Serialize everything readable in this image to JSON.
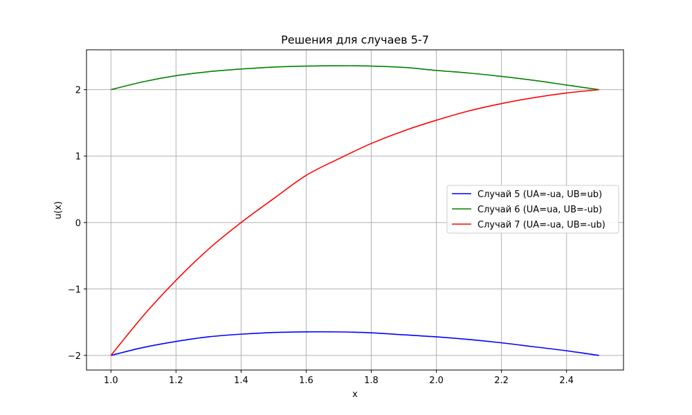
{
  "chart_data": {
    "type": "line",
    "title": "Решения для случаев 5-7",
    "xlabel": "x",
    "ylabel": "u(x)",
    "xlim": [
      0.925,
      2.575
    ],
    "ylim": [
      -2.22,
      2.6
    ],
    "x_ticks": [
      1.0,
      1.2,
      1.4,
      1.6,
      1.8,
      2.0,
      2.2,
      2.4
    ],
    "x_tick_labels": [
      "1.0",
      "1.2",
      "1.4",
      "1.6",
      "1.8",
      "2.0",
      "2.2",
      "2.4"
    ],
    "y_ticks": [
      -2,
      -1,
      0,
      1,
      2
    ],
    "y_tick_labels": [
      "−2",
      "−1",
      "0",
      "1",
      "2"
    ],
    "grid": true,
    "legend_position": "center-right",
    "x": [
      1.0,
      1.1,
      1.2,
      1.3,
      1.4,
      1.5,
      1.6,
      1.7,
      1.8,
      1.9,
      2.0,
      2.1,
      2.2,
      2.3,
      2.4,
      2.5
    ],
    "series": [
      {
        "name": "Случай 5 (UA=-ua, UB=ub)",
        "color": "#0000ff",
        "values": [
          -2.0,
          -1.88,
          -1.79,
          -1.72,
          -1.68,
          -1.655,
          -1.645,
          -1.646,
          -1.66,
          -1.69,
          -1.72,
          -1.76,
          -1.81,
          -1.87,
          -1.93,
          -2.0
        ]
      },
      {
        "name": "Случай 6 (UA=ua, UB=-ub)",
        "color": "#008000",
        "values": [
          2.0,
          2.12,
          2.21,
          2.27,
          2.31,
          2.34,
          2.355,
          2.36,
          2.355,
          2.335,
          2.29,
          2.25,
          2.2,
          2.14,
          2.07,
          2.0
        ]
      },
      {
        "name": "Случай 7 (UA=-ua, UB=-ub)",
        "color": "#ff0000",
        "values": [
          -2.0,
          -1.4,
          -0.87,
          -0.4,
          0.0,
          0.36,
          0.71,
          0.96,
          1.19,
          1.38,
          1.54,
          1.68,
          1.79,
          1.88,
          1.95,
          2.0
        ]
      }
    ]
  }
}
